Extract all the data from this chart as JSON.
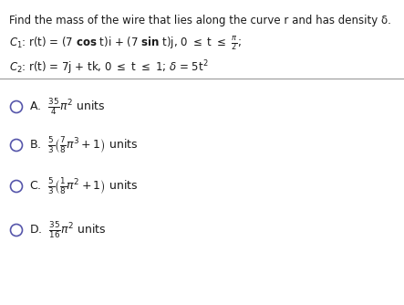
{
  "title": "Find the mass of the wire that lies along the curve r and has density δ.",
  "bg_color": "#ffffff",
  "text_color": "#1a1a1a",
  "circle_color": "#5555aa",
  "font_size_title": 8.5,
  "font_size_body": 8.5,
  "font_size_options": 9.0
}
